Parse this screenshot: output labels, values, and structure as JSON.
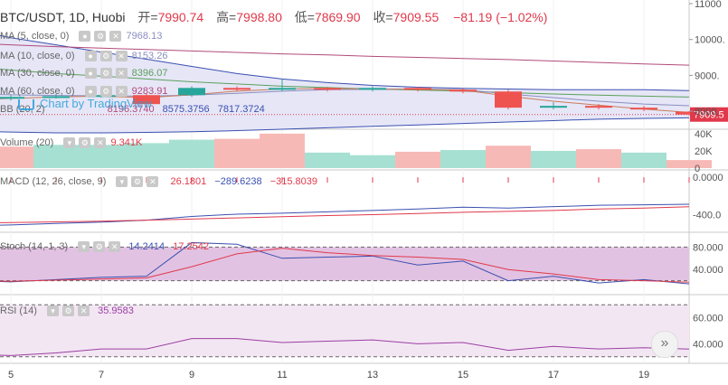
{
  "header": {
    "symbol": "BTC/USDT, 1D, Huobi",
    "open_label": "开=",
    "open": "7990.74",
    "high_label": "高=",
    "high": "7998.80",
    "low_label": "低=",
    "low": "7869.90",
    "close_label": "收=",
    "close": "7909.55",
    "change": "−81.19 (−1.02%)"
  },
  "indicators": {
    "ma5": {
      "name": "MA (5, close, 0)",
      "value": "7968.13",
      "color": "#8a8fbf"
    },
    "ma10": {
      "name": "MA (10, close, 0)",
      "value": "8153.26",
      "color": "#8a8fbf"
    },
    "ma30": {
      "name": "MA (30, close, 0)",
      "value": "8396.07",
      "color": "#5aa05a"
    },
    "ma60": {
      "name": "MA (60, close, 0)",
      "value": "9283.91",
      "color": "#b24a7a"
    },
    "bb": {
      "name": "BB (20, 2)",
      "v1": "8196.3740",
      "v2": "8575.3756",
      "v3": "7817.3724"
    },
    "volume": {
      "name": "Volume (20)",
      "value": "9.341K"
    },
    "macd": {
      "name": "MACD (12, 26, close, 9)",
      "v1": "26.1801",
      "v2": "−289.6238",
      "v3": "−315.8039"
    },
    "stoch": {
      "name": "Stoch (14, 1, 3)",
      "v1": "14.2414",
      "v2": "17.2542"
    },
    "rsi": {
      "name": "RSI (14)",
      "value": "35.9583"
    }
  },
  "watermark": "Chart by TradingView",
  "last_price_tag": "7909.5",
  "colors": {
    "up": "#26a69a",
    "down": "#ef5350",
    "bb_fill": "#e6e6f7",
    "stoch_fill": "#e2c2e2",
    "rsi_fill": "#f3e6f3"
  },
  "chart_data": [
    {
      "type": "candlestick",
      "x": [
        "4",
        "5",
        "6",
        "7",
        "8",
        "9",
        "10",
        "11",
        "12",
        "13",
        "14",
        "15",
        "16",
        "17",
        "18",
        "19",
        "20"
      ],
      "open": [
        8300,
        8350,
        8400,
        8420,
        8450,
        8450,
        8650,
        8620,
        8650,
        8600,
        8650,
        8600,
        8550,
        8100,
        8150,
        8100,
        7990.74
      ],
      "close": [
        8350,
        8400,
        8420,
        8450,
        8200,
        8650,
        8620,
        8650,
        8600,
        8650,
        8600,
        8550,
        8100,
        8150,
        8100,
        8050,
        7909.55
      ],
      "high": [
        8400,
        8450,
        8480,
        8500,
        8480,
        8700,
        8700,
        8900,
        8680,
        8700,
        8680,
        8640,
        8600,
        8250,
        8200,
        8150,
        7998.8
      ],
      "low": [
        8250,
        8300,
        8350,
        8380,
        8150,
        8400,
        8550,
        8550,
        8550,
        8550,
        8550,
        8500,
        8050,
        8050,
        8050,
        8000,
        7869.9
      ],
      "ylim": [
        7600,
        11100
      ],
      "y_ticks": [
        "11000",
        "10000.",
        "9000.",
        "8000."
      ]
    },
    {
      "type": "bar",
      "title": "Volume (20)",
      "x": [
        "4",
        "5",
        "6",
        "7",
        "8",
        "9",
        "10",
        "11",
        "12",
        "13",
        "14",
        "15",
        "16",
        "17",
        "18",
        "19",
        "20"
      ],
      "values": [
        12,
        25,
        27,
        27,
        29,
        33,
        34,
        40,
        18,
        15,
        19,
        21,
        26,
        20,
        22,
        18,
        9.341
      ],
      "direction": [
        "down",
        "down",
        "up",
        "up",
        "up",
        "up",
        "down",
        "down",
        "up",
        "up",
        "down",
        "up",
        "down",
        "up",
        "down",
        "up",
        "down"
      ],
      "ylim": [
        0,
        42
      ],
      "y_ticks": [
        "40K",
        "20K",
        "0"
      ]
    },
    {
      "type": "line",
      "title": "MACD (12, 26, close, 9)",
      "x": [
        "4",
        "5",
        "6",
        "7",
        "8",
        "9",
        "10",
        "11",
        "12",
        "13",
        "14",
        "15",
        "16",
        "17",
        "18",
        "19",
        "20"
      ],
      "series": [
        {
          "values": [
            -520,
            -510,
            -495,
            -480,
            -460,
            -420,
            -395,
            -385,
            -370,
            -355,
            -340,
            -320,
            -330,
            -315,
            -300,
            -295,
            -289.6238
          ]
        },
        {
          "values": [
            -490,
            -485,
            -478,
            -470,
            -460,
            -448,
            -435,
            -422,
            -410,
            -400,
            -388,
            -375,
            -365,
            -355,
            -340,
            -330,
            -315.8039
          ]
        }
      ],
      "ylim": [
        -560,
        40
      ],
      "y_ticks": [
        "0.0000",
        "-400.0"
      ]
    },
    {
      "type": "line",
      "title": "Stoch (14, 1, 3)",
      "x": [
        "4",
        "5",
        "6",
        "7",
        "8",
        "9",
        "10",
        "11",
        "12",
        "13",
        "14",
        "15",
        "16",
        "17",
        "18",
        "19",
        "20"
      ],
      "series": [
        {
          "values": [
            20,
            18,
            22,
            26,
            28,
            88,
            85,
            60,
            62,
            64,
            48,
            55,
            20,
            28,
            16,
            22,
            14.2414
          ]
        },
        {
          "values": [
            20,
            19,
            21,
            23,
            25,
            45,
            68,
            78,
            70,
            65,
            62,
            58,
            40,
            32,
            22,
            20,
            17.2542
          ]
        }
      ],
      "ylim": [
        0,
        100
      ],
      "y_ticks": [
        "80.000",
        "40.000"
      ]
    },
    {
      "type": "line",
      "title": "RSI (14)",
      "x": [
        "4",
        "5",
        "6",
        "7",
        "8",
        "9",
        "10",
        "11",
        "12",
        "13",
        "14",
        "15",
        "16",
        "17",
        "18",
        "19",
        "20"
      ],
      "series": [
        {
          "values": [
            32,
            31,
            33,
            36,
            36,
            44,
            44,
            41,
            42,
            43,
            40,
            41,
            35,
            38,
            36,
            37,
            35.9583
          ]
        }
      ],
      "ylim": [
        25,
        75
      ],
      "y_ticks": [
        "60.000",
        "40.000"
      ]
    }
  ],
  "x_ticks": [
    "5",
    "7",
    "9",
    "11",
    "13",
    "15",
    "17",
    "19"
  ]
}
